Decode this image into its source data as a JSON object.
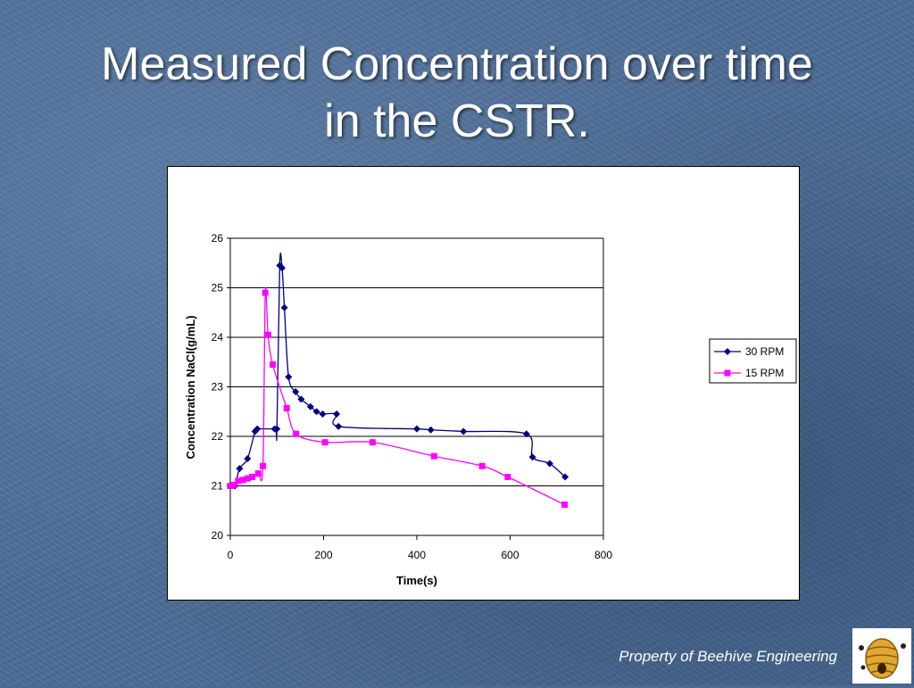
{
  "slide": {
    "title_line1": "Measured Concentration over time",
    "title_line2": "in the CSTR.",
    "footer": "Property of Beehive Engineering"
  },
  "colors": {
    "series_30": "#000080",
    "series_15": "#ff00ff",
    "text": "#ffffff"
  },
  "chart_data": {
    "type": "line",
    "xlabel": "Time(s)",
    "ylabel": "Concentration NaCl(g/mL)",
    "xlim": [
      0,
      800
    ],
    "ylim": [
      20,
      26
    ],
    "xticks": [
      "0",
      "200",
      "400",
      "600",
      "800"
    ],
    "yticks": [
      "20",
      "21",
      "22",
      "23",
      "24",
      "25",
      "26"
    ],
    "grid": "horizontal",
    "legend_position": "right",
    "series": [
      {
        "name": "30 RPM",
        "marker": "diamond",
        "points": [
          [
            0,
            21.0
          ],
          [
            10,
            21.0
          ],
          [
            20,
            21.35
          ],
          [
            37,
            21.55
          ],
          [
            53,
            22.1
          ],
          [
            58,
            22.15
          ],
          [
            95,
            22.15
          ],
          [
            100,
            22.15
          ],
          [
            106,
            25.45
          ],
          [
            111,
            25.4
          ],
          [
            116,
            24.6
          ],
          [
            125,
            23.2
          ],
          [
            140,
            22.9
          ],
          [
            152,
            22.75
          ],
          [
            172,
            22.6
          ],
          [
            185,
            22.5
          ],
          [
            198,
            22.45
          ],
          [
            228,
            22.45
          ],
          [
            232,
            22.2
          ],
          [
            400,
            22.15
          ],
          [
            430,
            22.13
          ],
          [
            500,
            22.1
          ],
          [
            635,
            22.05
          ],
          [
            648,
            21.58
          ],
          [
            685,
            21.45
          ],
          [
            718,
            21.18
          ]
        ]
      },
      {
        "name": "15 RPM",
        "marker": "square",
        "points": [
          [
            0,
            21.0
          ],
          [
            8,
            21.02
          ],
          [
            17,
            21.1
          ],
          [
            27,
            21.12
          ],
          [
            37,
            21.15
          ],
          [
            47,
            21.18
          ],
          [
            60,
            21.25
          ],
          [
            70,
            21.4
          ],
          [
            75,
            24.9
          ],
          [
            81,
            24.05
          ],
          [
            91,
            23.45
          ],
          [
            121,
            22.57
          ],
          [
            141,
            22.05
          ],
          [
            203,
            21.88
          ],
          [
            305,
            21.88
          ],
          [
            437,
            21.6
          ],
          [
            540,
            21.4
          ],
          [
            595,
            21.18
          ],
          [
            717,
            20.62
          ]
        ]
      }
    ]
  }
}
